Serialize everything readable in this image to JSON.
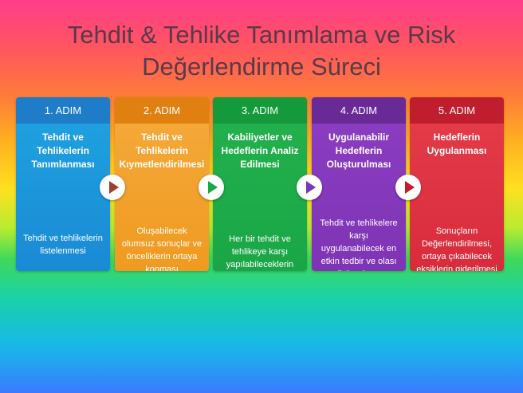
{
  "title_lines": [
    "Tehdit & Tehlike Tanımlama ve Risk",
    "Değerlendirme Süreci"
  ],
  "steps": [
    {
      "label": "1. ADIM",
      "heading": "Tehdit ve Tehlikelerin Tanımlanması",
      "desc": "Tehdit ve tehlikelerin listelenmesi",
      "color": "#1a8ad4"
    },
    {
      "label": "2. ADIM",
      "heading": "Tehdit ve Tehlikelerin Kıymetlendirilmesi",
      "desc": "Oluşabilecek olumsuz sonuçlar ve önceliklerin ortaya konması",
      "color": "#f09a20"
    },
    {
      "label": "3. ADIM",
      "heading": "Kabiliyetler ve Hedeflerin Analiz Edilmesi",
      "desc": "Her bir tehdit ve tehlikeye karşı yapılabileceklerin belirlenmesi",
      "color": "#1aa646"
    },
    {
      "label": "4. ADIM",
      "heading": "Uygulanabilir Hedeflerin Oluşturulması",
      "desc": "Tehdit ve tehlikelere karşı uygulanabilecek en etkin tedbir ve olası ihtiyaçların belirlenmesi",
      "color": "#7e34b4"
    },
    {
      "label": "5. ADIM",
      "heading": "Hedeflerin Uygulanması",
      "desc": "Sonuçların Değerlendirilmesi, ortaya çıkabilecek eksiklerin giderilmesi",
      "color": "#d82c3c"
    }
  ],
  "arrows": [
    {
      "icon": "play-arrow-icon",
      "color": "#a0402a"
    },
    {
      "icon": "play-arrow-icon",
      "color": "#1aa646"
    },
    {
      "icon": "play-arrow-icon",
      "color": "#7e34b4"
    },
    {
      "icon": "play-arrow-icon",
      "color": "#c01e2e"
    }
  ]
}
